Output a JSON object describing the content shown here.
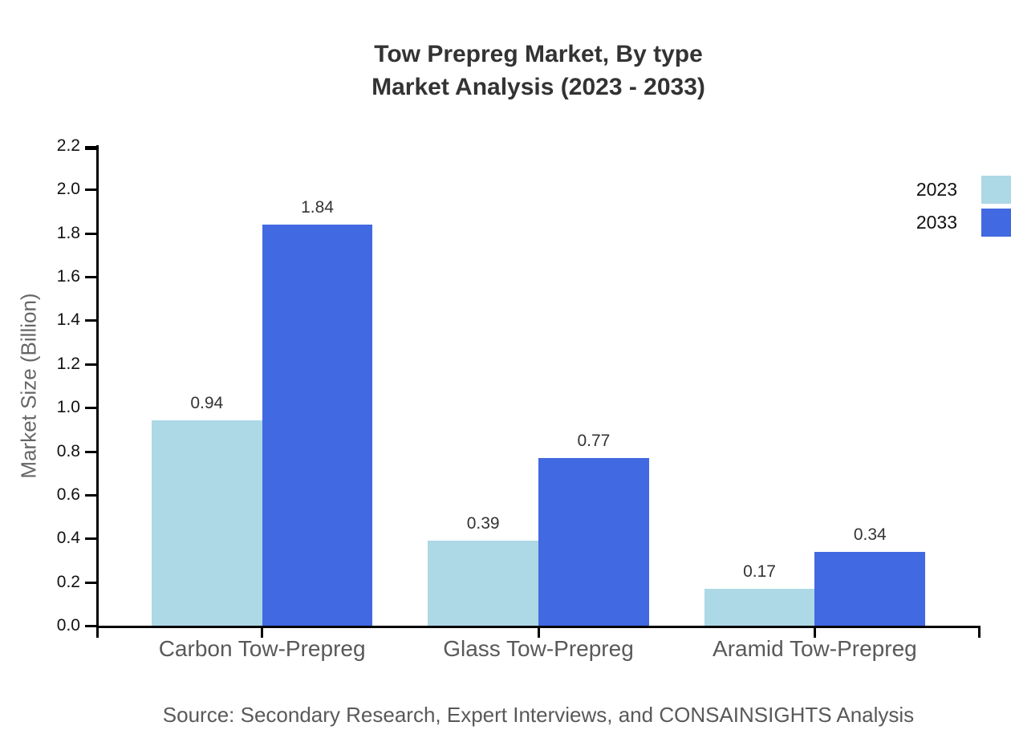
{
  "title": {
    "line1": "Tow Prepreg Market, By type",
    "line2": "Market Analysis (2023 - 2033)"
  },
  "legend": {
    "items": [
      {
        "label": "2023",
        "color": "#ADD8E6"
      },
      {
        "label": "2033",
        "color": "#4169E1"
      }
    ]
  },
  "source_note": "Source: Secondary Research, Expert Interviews, and CONSAINSIGHTS Analysis",
  "colors": {
    "series_2023": "#ADD8E6",
    "series_2033": "#4169E1",
    "axis": "#000000",
    "title_text": "#333333",
    "tick_text": "#111111",
    "category_text": "#595959",
    "axis_title_text": "#666666"
  },
  "chart_data": {
    "type": "bar",
    "title": "Tow Prepreg Market, By type — Market Analysis (2023 - 2033)",
    "categories": [
      "Carbon Tow-Prepreg",
      "Glass Tow-Prepreg",
      "Aramid Tow-Prepreg"
    ],
    "series": [
      {
        "name": "2023",
        "color": "#ADD8E6",
        "values": [
          0.94,
          0.39,
          0.17
        ]
      },
      {
        "name": "2033",
        "color": "#4169E1",
        "values": [
          1.84,
          0.77,
          0.34
        ]
      }
    ],
    "value_labels": [
      "0.94",
      "1.84",
      "0.39",
      "0.77",
      "0.17",
      "0.34"
    ],
    "xlabel": "",
    "ylabel": "Market Size (Billion)",
    "ylim": [
      0.0,
      2.2
    ],
    "yticks": [
      "0.0",
      "0.2",
      "0.4",
      "0.6",
      "0.8",
      "1.0",
      "1.2",
      "1.4",
      "1.6",
      "1.8",
      "2.0",
      "2.2"
    ],
    "grid": false,
    "legend_position": "upper right",
    "value_labels_shown": true
  }
}
